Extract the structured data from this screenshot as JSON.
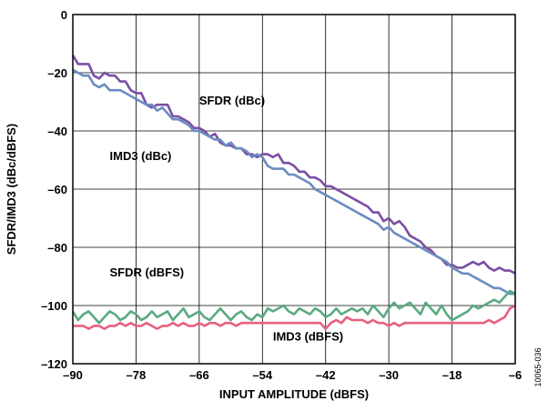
{
  "chart_data": {
    "type": "line",
    "xlabel": "INPUT AMPLITUDE (dBFS)",
    "ylabel": "SFDR/IMD3 (dBc/dBFS)",
    "xlim": [
      -90,
      -6
    ],
    "ylim": [
      -120,
      0
    ],
    "x_ticks": [
      -90,
      -78,
      -66,
      -54,
      -42,
      -30,
      -18,
      -6
    ],
    "y_ticks": [
      0,
      -20,
      -40,
      -60,
      -80,
      -100,
      -120
    ],
    "x_tick_labels": [
      "–90",
      "–78",
      "–66",
      "–54",
      "–42",
      "–30",
      "–18",
      "–6"
    ],
    "y_tick_labels": [
      "0",
      "–20",
      "–40",
      "–60",
      "–80",
      "–100",
      "–120"
    ],
    "grid": true,
    "figure_id": "10065-036",
    "annotations": [
      {
        "text": "SFDR (dBc)",
        "x": -66,
        "y": -31
      },
      {
        "text": "IMD3 (dBc)",
        "x": -83,
        "y": -50
      },
      {
        "text": "SFDR (dBFS)",
        "x": -83,
        "y": -90
      },
      {
        "text": "IMD3 (dBFS)",
        "x": -52,
        "y": -112
      }
    ],
    "series": [
      {
        "color": "#7b4fa3",
        "x": [
          -90,
          -89,
          -88,
          -87,
          -86,
          -85,
          -84,
          -83,
          -82,
          -81,
          -80,
          -79,
          -78,
          -77,
          -76,
          -75,
          -74,
          -73,
          -72,
          -71,
          -70,
          -69,
          -68,
          -67,
          -66,
          -65,
          -64,
          -63,
          -62,
          -61,
          -60,
          -59,
          -58,
          -57,
          -56,
          -55,
          -54,
          -53,
          -52,
          -51,
          -50,
          -49,
          -48,
          -47,
          -46,
          -45,
          -44,
          -43,
          -42,
          -41,
          -40,
          -39,
          -38,
          -37,
          -36,
          -35,
          -34,
          -33,
          -32,
          -31,
          -30,
          -29,
          -28,
          -27,
          -26,
          -25,
          -24,
          -23,
          -22,
          -21,
          -20,
          -19,
          -18,
          -17,
          -16,
          -15,
          -14,
          -13,
          -12,
          -11,
          -10,
          -9,
          -8,
          -7,
          -6
        ],
        "values": [
          -14,
          -17,
          -17,
          -17,
          -21,
          -22,
          -20,
          -21,
          -21,
          -23,
          -23,
          -26,
          -27,
          -27,
          -31,
          -32,
          -31,
          -31,
          -31,
          -35,
          -35,
          -36,
          -37,
          -39,
          -39,
          -40,
          -42,
          -41,
          -44,
          -45,
          -45,
          -46,
          -46,
          -48,
          -48,
          -49,
          -48,
          -48,
          -49,
          -48,
          -51,
          -51,
          -52,
          -54,
          -54,
          -56,
          -56,
          -57,
          -59,
          -59,
          -60,
          -61,
          -62,
          -63,
          -64,
          -65,
          -66,
          -68,
          -68,
          -71,
          -70,
          -72,
          -71,
          -73,
          -76,
          -77,
          -78,
          -80,
          -81,
          -83,
          -84,
          -86,
          -86,
          -87,
          -87,
          -86,
          -85,
          -86,
          -85,
          -87,
          -88,
          -87,
          -88,
          -88,
          -89
        ]
      },
      {
        "color": "#6b8cc0",
        "x": [
          -90,
          -89,
          -88,
          -87,
          -86,
          -85,
          -84,
          -83,
          -82,
          -81,
          -80,
          -79,
          -78,
          -77,
          -76,
          -75,
          -74,
          -73,
          -72,
          -71,
          -70,
          -69,
          -68,
          -67,
          -66,
          -65,
          -64,
          -63,
          -62,
          -61,
          -60,
          -59,
          -58,
          -57,
          -56,
          -55,
          -54,
          -53,
          -52,
          -51,
          -50,
          -49,
          -48,
          -47,
          -46,
          -45,
          -44,
          -43,
          -42,
          -41,
          -40,
          -39,
          -38,
          -37,
          -36,
          -35,
          -34,
          -33,
          -32,
          -31,
          -30,
          -29,
          -28,
          -27,
          -26,
          -25,
          -24,
          -23,
          -22,
          -21,
          -20,
          -19,
          -18,
          -17,
          -16,
          -15,
          -14,
          -13,
          -12,
          -11,
          -10,
          -9,
          -8,
          -7,
          -6
        ],
        "values": [
          -19,
          -20,
          -21,
          -21,
          -24,
          -25,
          -24,
          -26,
          -26,
          -26,
          -27,
          -28,
          -29,
          -30,
          -31,
          -31,
          -33,
          -32,
          -34,
          -36,
          -36,
          -37,
          -38,
          -40,
          -40,
          -41,
          -42,
          -43,
          -43,
          -45,
          -44,
          -46,
          -46,
          -47,
          -49,
          -48,
          -49,
          -52,
          -53,
          -53,
          -53,
          -55,
          -55,
          -56,
          -57,
          -58,
          -60,
          -61,
          -62,
          -63,
          -64,
          -65,
          -66,
          -67,
          -68,
          -69,
          -70,
          -71,
          -72,
          -74,
          -73,
          -75,
          -76,
          -77,
          -78,
          -79,
          -80,
          -81,
          -82,
          -83,
          -84,
          -85,
          -87,
          -88,
          -89,
          -89,
          -90,
          -91,
          -92,
          -93,
          -94,
          -94,
          -95,
          -96,
          -96
        ]
      },
      {
        "color": "#5aaa80",
        "x": [
          -90,
          -89,
          -88,
          -87,
          -86,
          -85,
          -84,
          -83,
          -82,
          -81,
          -80,
          -79,
          -78,
          -77,
          -76,
          -75,
          -74,
          -73,
          -72,
          -71,
          -70,
          -69,
          -68,
          -67,
          -66,
          -65,
          -64,
          -63,
          -62,
          -61,
          -60,
          -59,
          -58,
          -57,
          -56,
          -55,
          -54,
          -53,
          -52,
          -51,
          -50,
          -49,
          -48,
          -47,
          -46,
          -45,
          -44,
          -43,
          -42,
          -41,
          -40,
          -39,
          -38,
          -37,
          -36,
          -35,
          -34,
          -33,
          -32,
          -31,
          -30,
          -29,
          -28,
          -27,
          -26,
          -25,
          -24,
          -23,
          -22,
          -21,
          -20,
          -19,
          -18,
          -17,
          -16,
          -15,
          -14,
          -13,
          -12,
          -11,
          -10,
          -9,
          -8,
          -7,
          -6
        ],
        "values": [
          -102,
          -105,
          -103,
          -102,
          -104,
          -106,
          -104,
          -102,
          -103,
          -105,
          -104,
          -102,
          -103,
          -105,
          -104,
          -102,
          -104,
          -103,
          -102,
          -105,
          -103,
          -101,
          -104,
          -103,
          -102,
          -104,
          -105,
          -103,
          -101,
          -103,
          -105,
          -103,
          -102,
          -104,
          -105,
          -103,
          -104,
          -101,
          -102,
          -101,
          -100,
          -102,
          -103,
          -101,
          -102,
          -103,
          -101,
          -102,
          -104,
          -103,
          -101,
          -103,
          -102,
          -101,
          -102,
          -101,
          -103,
          -100,
          -102,
          -104,
          -101,
          -99,
          -101,
          -100,
          -99,
          -101,
          -103,
          -99,
          -101,
          -103,
          -100,
          -103,
          -105,
          -104,
          -103,
          -102,
          -100,
          -101,
          -100,
          -99,
          -98,
          -99,
          -97,
          -95,
          -96
        ]
      },
      {
        "color": "#e8607e",
        "x": [
          -90,
          -89,
          -88,
          -87,
          -86,
          -85,
          -84,
          -83,
          -82,
          -81,
          -80,
          -79,
          -78,
          -77,
          -76,
          -75,
          -74,
          -73,
          -72,
          -71,
          -70,
          -69,
          -68,
          -67,
          -66,
          -65,
          -64,
          -63,
          -62,
          -61,
          -60,
          -59,
          -58,
          -57,
          -56,
          -55,
          -54,
          -53,
          -52,
          -51,
          -50,
          -49,
          -48,
          -47,
          -46,
          -45,
          -44,
          -43,
          -42,
          -41,
          -40,
          -39,
          -38,
          -37,
          -36,
          -35,
          -34,
          -33,
          -32,
          -31,
          -30,
          -29,
          -28,
          -27,
          -26,
          -25,
          -24,
          -23,
          -22,
          -21,
          -20,
          -19,
          -18,
          -17,
          -16,
          -15,
          -14,
          -13,
          -12,
          -11,
          -10,
          -9,
          -8,
          -7,
          -6
        ],
        "values": [
          -107,
          -107,
          -107,
          -108,
          -107,
          -107,
          -108,
          -107,
          -107,
          -106,
          -107,
          -106,
          -107,
          -107,
          -106,
          -107,
          -108,
          -107,
          -107,
          -106,
          -107,
          -106,
          -107,
          -107,
          -106,
          -107,
          -106,
          -106,
          -107,
          -106,
          -106,
          -107,
          -106,
          -106,
          -106,
          -106,
          -106,
          -106,
          -106,
          -106,
          -106,
          -106,
          -106,
          -106,
          -106,
          -106,
          -106,
          -106,
          -108,
          -106,
          -105,
          -106,
          -104,
          -105,
          -105,
          -105,
          -106,
          -105,
          -106,
          -106,
          -107,
          -106,
          -107,
          -106,
          -106,
          -106,
          -106,
          -106,
          -106,
          -106,
          -106,
          -106,
          -106,
          -106,
          -106,
          -106,
          -106,
          -106,
          -106,
          -105,
          -106,
          -105,
          -104,
          -101,
          -100
        ]
      }
    ]
  }
}
